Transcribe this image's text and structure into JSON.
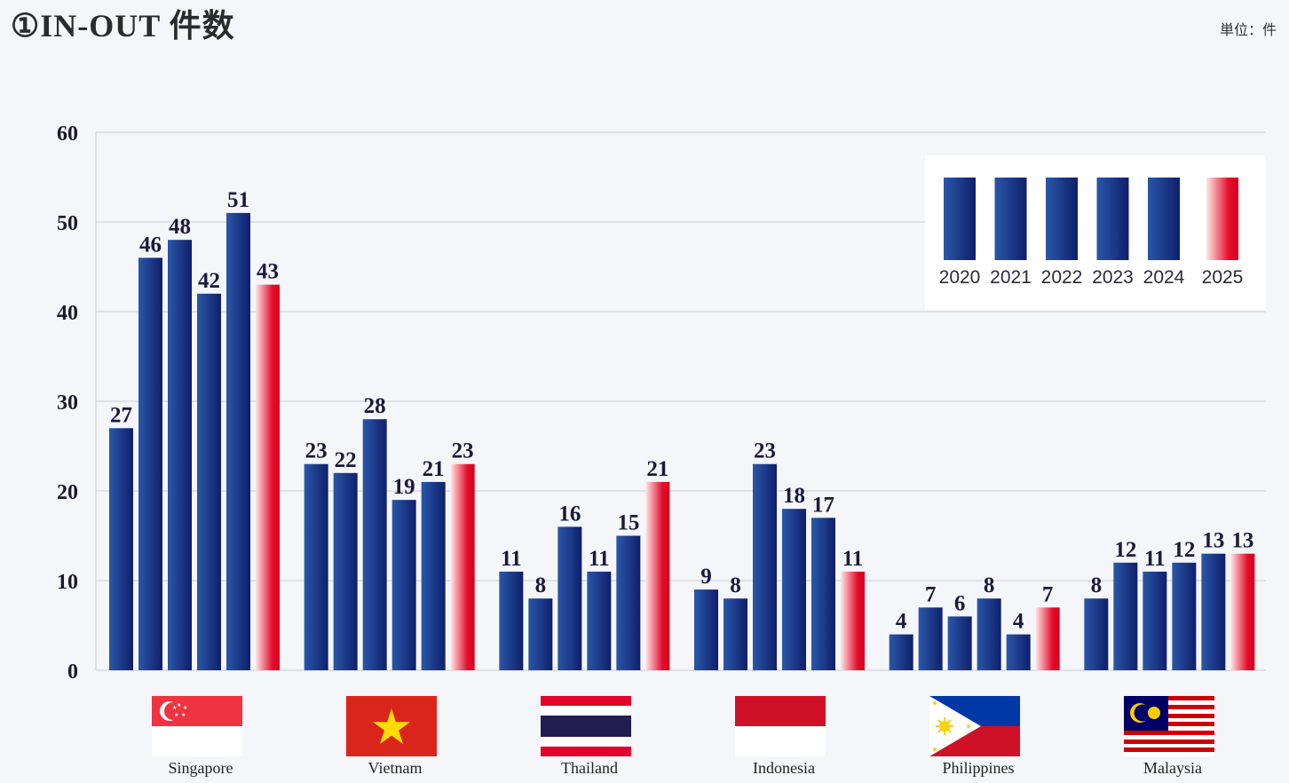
{
  "header": {
    "title": "①IN-OUT 件数",
    "unit": "単位：件"
  },
  "colors": {
    "bar_dark": "#0f1f6b",
    "bar_light": "#2a57a8",
    "red_dark": "#d8001c",
    "red_light": "#ffe6e6",
    "grid": "#c9ccd4"
  },
  "chart_data": {
    "type": "bar",
    "categories": [
      "Singapore",
      "Vietnam",
      "Thailand",
      "Indonesia",
      "Philippines",
      "Malaysia"
    ],
    "series": [
      {
        "name": "2020",
        "values": [
          27,
          23,
          11,
          9,
          4,
          8
        ]
      },
      {
        "name": "2021",
        "values": [
          46,
          22,
          8,
          8,
          7,
          12
        ]
      },
      {
        "name": "2022",
        "values": [
          48,
          28,
          16,
          23,
          6,
          11
        ]
      },
      {
        "name": "2023",
        "values": [
          42,
          19,
          11,
          18,
          8,
          12
        ]
      },
      {
        "name": "2024",
        "values": [
          51,
          21,
          15,
          17,
          4,
          13
        ]
      },
      {
        "name": "2025",
        "values": [
          43,
          23,
          21,
          11,
          7,
          13
        ]
      }
    ],
    "ylim": [
      0,
      60
    ],
    "yticks": [
      0,
      10,
      20,
      30,
      40,
      50,
      60
    ],
    "grid": true,
    "legend": "top-right"
  }
}
